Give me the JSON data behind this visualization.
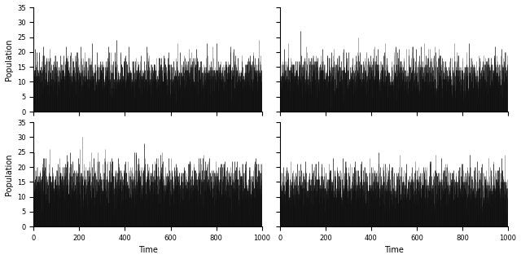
{
  "n_rows": 2,
  "n_cols": 2,
  "n_time": 1000,
  "ylim": [
    0,
    35
  ],
  "xlim": [
    0,
    1000
  ],
  "yticks": [
    0,
    5,
    10,
    15,
    20,
    25,
    30,
    35
  ],
  "xticks": [
    0,
    200,
    400,
    600,
    800,
    1000
  ],
  "xlabel": "Time",
  "ylabel": "Population",
  "series1_color": "#111111",
  "series2_color": "#888888",
  "linewidth": 0.5,
  "figsize": [
    6.4,
    3.18
  ],
  "dpi": 100,
  "subplot_configs": [
    {
      "seed1": 101,
      "seed2": 201,
      "mean1": 12,
      "mean2": 12
    },
    {
      "seed1": 102,
      "seed2": 202,
      "mean1": 12,
      "mean2": 12
    },
    {
      "seed1": 103,
      "seed2": 203,
      "mean1": 14,
      "mean2": 14
    },
    {
      "seed1": 104,
      "seed2": 204,
      "mean1": 13,
      "mean2": 13
    }
  ]
}
